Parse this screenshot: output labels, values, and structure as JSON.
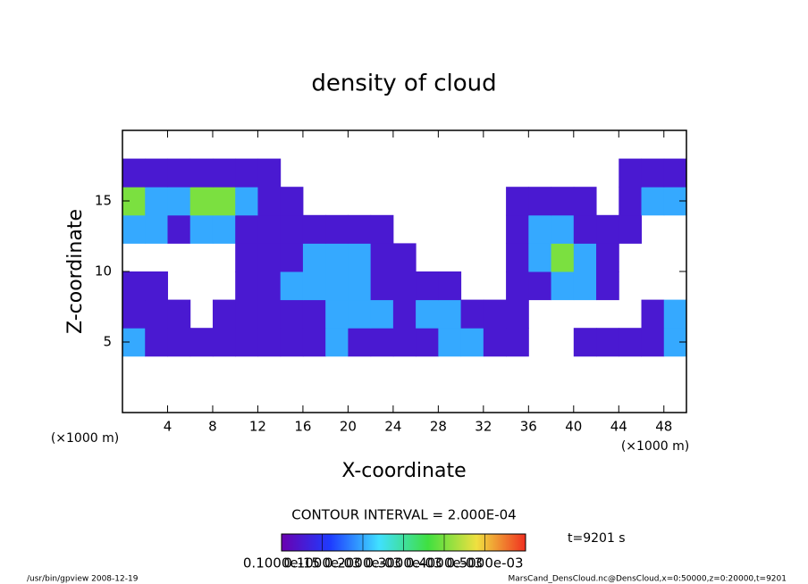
{
  "chart_data": {
    "type": "contour",
    "title": "density of cloud",
    "xlabel": "X-coordinate",
    "ylabel": "Z-coordinate",
    "xunit": "(×1000 m)",
    "yunit": "(×1000 m)",
    "contour_interval": "CONTOUR INTERVAL = 2.000E-04",
    "time": "t=9201 s",
    "footer_left": "/usr/bin/gpview  2008-12-19",
    "footer_right": "MarsCand_DensCloud.nc@DensCloud,x=0:50000,z=0:20000,t=9201",
    "xlim": [
      0,
      50
    ],
    "ylim": [
      0,
      20
    ],
    "xticks": [
      4,
      8,
      12,
      16,
      20,
      24,
      28,
      32,
      36,
      40,
      44,
      48
    ],
    "yticks": [
      5,
      10,
      15
    ],
    "x": [
      1,
      3,
      5,
      7,
      9,
      11,
      13,
      15,
      17,
      19,
      21,
      23,
      25,
      27,
      29,
      31,
      33,
      35,
      37,
      39,
      41,
      43,
      45,
      47,
      49
    ],
    "z": [
      1,
      3,
      5,
      7,
      9,
      11,
      13,
      15,
      17,
      19
    ],
    "values": [
      [
        0,
        0,
        0,
        0,
        0,
        0,
        0,
        0,
        0,
        0,
        0,
        0,
        0,
        0,
        0,
        0,
        0,
        0,
        0,
        0,
        0,
        0,
        0,
        0,
        0
      ],
      [
        0,
        0,
        0,
        0,
        0,
        0,
        0,
        0,
        0,
        0,
        0,
        0,
        0,
        0,
        0,
        0,
        0,
        0,
        0,
        0,
        0,
        0,
        0,
        0,
        0
      ],
      [
        0.0002,
        5e-05,
        5e-05,
        5e-05,
        5e-05,
        5e-05,
        5e-05,
        5e-05,
        5e-05,
        0.0002,
        5e-05,
        5e-05,
        5e-05,
        5e-05,
        0.0002,
        0.0002,
        5e-05,
        5e-05,
        0,
        0,
        5e-05,
        5e-05,
        5e-05,
        5e-05,
        0.0002
      ],
      [
        5e-05,
        5e-05,
        5e-05,
        0,
        5e-05,
        5e-05,
        5e-05,
        5e-05,
        5e-05,
        0.0002,
        0.0002,
        0.0002,
        5e-05,
        0.0002,
        0.0002,
        5e-05,
        5e-05,
        5e-05,
        0,
        0,
        0,
        0,
        0,
        5e-05,
        0.0002
      ],
      [
        5e-05,
        5e-05,
        0,
        0,
        0,
        5e-05,
        5e-05,
        0.0002,
        0.0002,
        0.0002,
        0.0002,
        5e-05,
        5e-05,
        5e-05,
        5e-05,
        0,
        0,
        5e-05,
        5e-05,
        0.0002,
        0.0002,
        5e-05,
        0,
        0,
        0
      ],
      [
        0,
        0,
        0,
        0,
        0,
        5e-05,
        5e-05,
        5e-05,
        0.0002,
        0.0002,
        0.0002,
        5e-05,
        5e-05,
        0,
        0,
        0,
        0,
        5e-05,
        0.0002,
        0.0004,
        0.0002,
        5e-05,
        0,
        0,
        0
      ],
      [
        0.0002,
        0.0002,
        5e-05,
        0.0002,
        0.0002,
        5e-05,
        5e-05,
        5e-05,
        5e-05,
        5e-05,
        5e-05,
        5e-05,
        0,
        0,
        0,
        0,
        0,
        5e-05,
        0.0002,
        0.0002,
        5e-05,
        5e-05,
        5e-05,
        0,
        0
      ],
      [
        0.0004,
        0.0002,
        0.0002,
        0.0004,
        0.0004,
        0.0002,
        5e-05,
        5e-05,
        0,
        0,
        0,
        0,
        0,
        0,
        0,
        0,
        0,
        5e-05,
        5e-05,
        5e-05,
        5e-05,
        0,
        5e-05,
        0.0002,
        0.0002
      ],
      [
        5e-05,
        5e-05,
        5e-05,
        5e-05,
        5e-05,
        5e-05,
        5e-05,
        0,
        0,
        0,
        0,
        0,
        0,
        0,
        0,
        0,
        0,
        0,
        0,
        0,
        0,
        0,
        5e-05,
        5e-05,
        5e-05
      ],
      [
        0,
        0,
        0,
        0,
        0,
        0,
        0,
        0,
        0,
        0,
        0,
        0,
        0,
        0,
        0,
        0,
        0,
        0,
        0,
        0,
        0,
        0,
        0,
        0,
        0
      ]
    ],
    "clim": [
      0,
      0.0006
    ],
    "colormap": [
      "#6a00b0",
      "#1e3cff",
      "#40e0ff",
      "#40e040",
      "#f0e040",
      "#f03020"
    ],
    "colorbar_ticks": [
      {
        "value": 1e-16,
        "label": "0.1000e-15"
      },
      {
        "value": 0.0001,
        "label": "0.1000e-03"
      },
      {
        "value": 0.0002,
        "label": "0.2000e-03"
      },
      {
        "value": 0.0003,
        "label": "0.3000e-03"
      },
      {
        "value": 0.0004,
        "label": "0.4000e-03"
      },
      {
        "value": 0.0005,
        "label": "0.5000e-03"
      }
    ]
  }
}
